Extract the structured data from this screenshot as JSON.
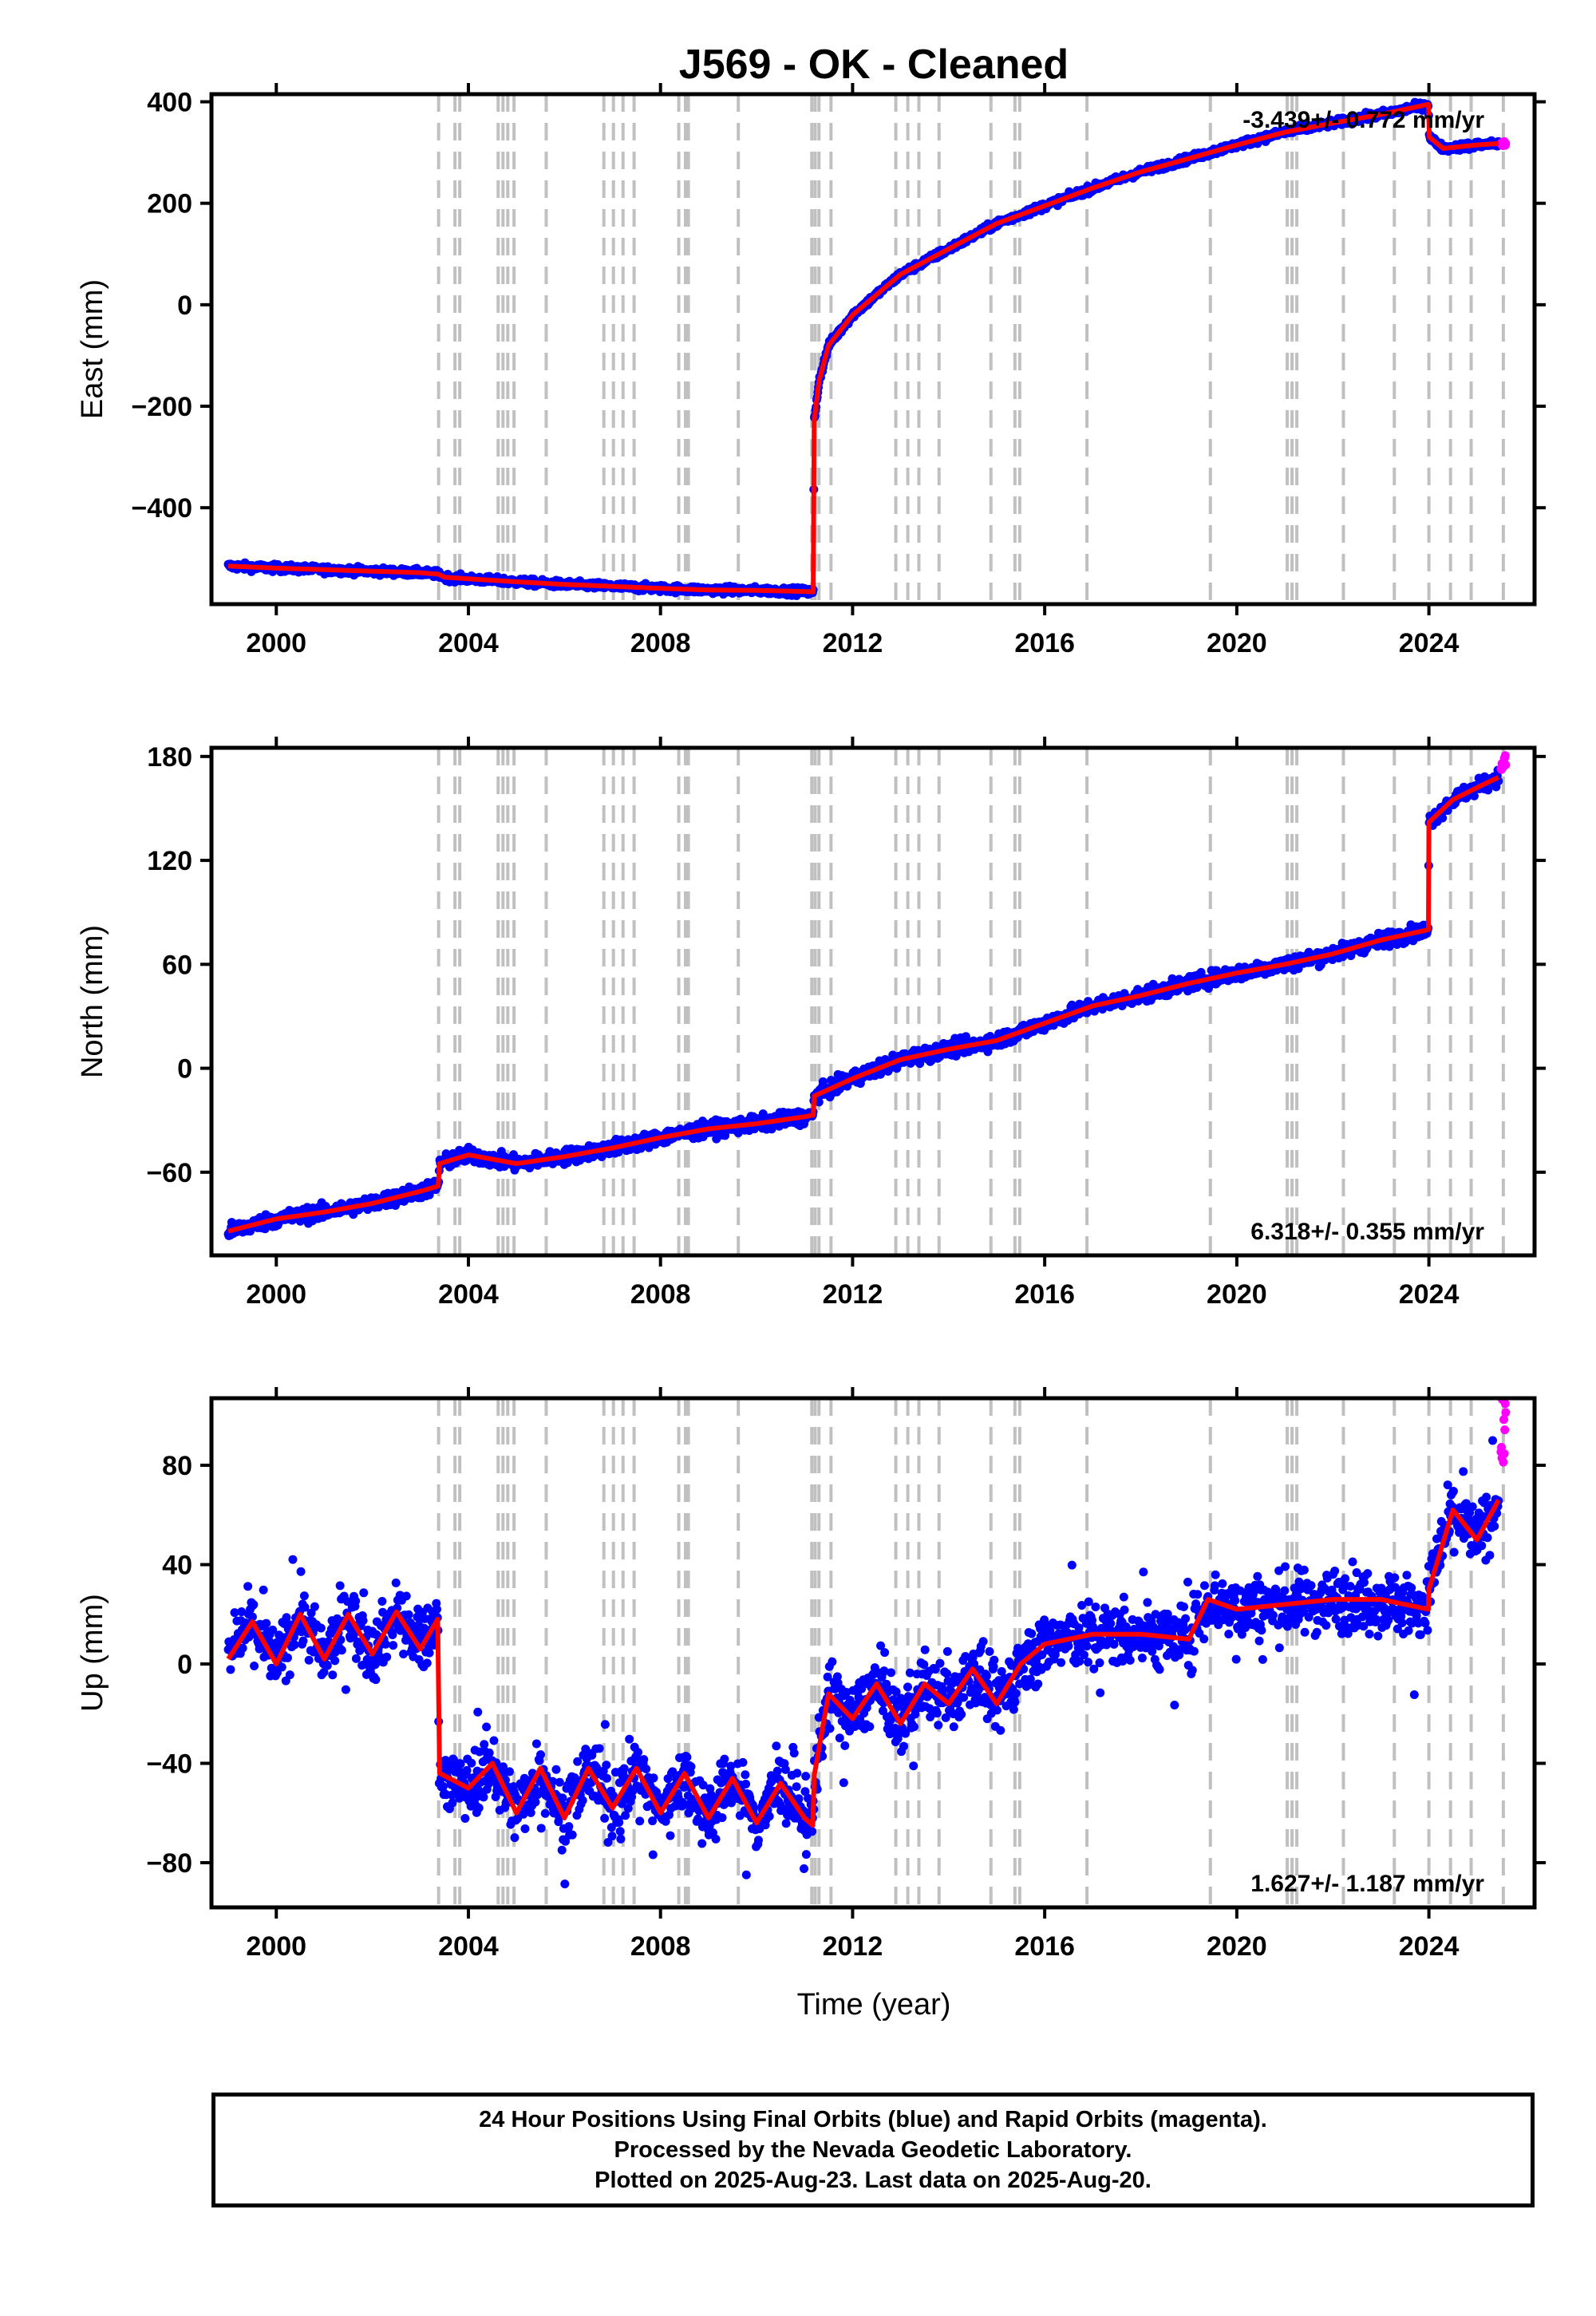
{
  "title": "J569  - OK - Cleaned",
  "colors": {
    "final_orbits": "#0000ff",
    "rapid_orbits": "#ff00ff",
    "model": "#ff0000",
    "event_lines": "#c0c0c0"
  },
  "caption": {
    "line1": "24 Hour Positions Using Final Orbits (blue) and Rapid Orbits (magenta).",
    "line2": "Processed by the Nevada Geodetic Laboratory.",
    "line3": "Plotted on 2025-Aug-23. Last data on 2025-Aug-20."
  },
  "chart_data": {
    "type": "scatter",
    "event_lines_years": [
      2003.38,
      2003.72,
      2003.82,
      2004.62,
      2004.72,
      2004.82,
      2004.95,
      2005.62,
      2006.82,
      2007.02,
      2007.22,
      2007.45,
      2008.38,
      2008.52,
      2008.58,
      2009.62,
      2011.15,
      2011.22,
      2011.3,
      2011.55,
      2012.9,
      2013.15,
      2013.38,
      2013.8,
      2014.88,
      2015.38,
      2015.48,
      2016.88,
      2019.45,
      2021.05,
      2021.15,
      2021.25,
      2022.22,
      2023.28,
      2024.0,
      2024.45,
      2024.88,
      2025.55
    ],
    "x_ticks": [
      "2000",
      "2004",
      "2008",
      "2012",
      "2016",
      "2020",
      "2024"
    ],
    "x_tick_values": [
      2000,
      2004,
      2008,
      2012,
      2016,
      2020,
      2024
    ],
    "xlim": [
      1998.65,
      2026.2
    ],
    "xlabel": "Time (year)",
    "panels": [
      {
        "name": "East",
        "ylabel": "East (mm)",
        "ylim": [
          -590,
          415
        ],
        "y_ticks": [
          400,
          200,
          0,
          -200,
          -400
        ],
        "y_tick_labels": [
          "400",
          "200",
          "0",
          "−200",
          "−400"
        ],
        "rate_text": "-3.439+/- 0.772 mm/yr",
        "rate_position": "top-right",
        "series": [
          {
            "name": "Final Orbits",
            "x": [
              1999.0,
              2000.0,
              2001.0,
              2002.0,
              2003.0,
              2003.38,
              2003.5,
              2004.0,
              2005.0,
              2006.0,
              2007.0,
              2008.0,
              2009.0,
              2010.0,
              2011.0,
              2011.18,
              2011.2,
              2011.3,
              2011.5,
              2012.0,
              2013.0,
              2014.0,
              2015.0,
              2016.0,
              2017.0,
              2018.0,
              2019.0,
              2020.0,
              2021.0,
              2022.0,
              2023.0,
              2023.99,
              2024.01,
              2024.3,
              2025.0,
              2025.45
            ],
            "y": [
              -515,
              -519,
              -522,
              -525,
              -528,
              -531,
              -537,
              -540,
              -546,
              -551,
              -555,
              -559,
              -562,
              -563,
              -565,
              -566,
              -230,
              -150,
              -80,
              -20,
              60,
              110,
              160,
              195,
              230,
              262,
              288,
              315,
              340,
              358,
              375,
              395,
              330,
              308,
              315,
              318
            ]
          },
          {
            "name": "Rapid Orbits",
            "x": [
              2025.5,
              2025.55,
              2025.6
            ],
            "y": [
              318,
              317,
              316
            ]
          }
        ]
      },
      {
        "name": "North",
        "ylabel": "North (mm)",
        "ylim": [
          -108,
          185
        ],
        "y_ticks": [
          180,
          120,
          60,
          0,
          -60
        ],
        "y_tick_labels": [
          "180",
          "120",
          "60",
          "0",
          "−60"
        ],
        "rate_text": "6.318+/- 0.355 mm/yr",
        "rate_position": "bottom-right",
        "series": [
          {
            "name": "Final Orbits",
            "x": [
              1999.0,
              2000.0,
              2001.0,
              2002.0,
              2003.0,
              2003.37,
              2003.4,
              2004.0,
              2005.0,
              2006.0,
              2007.0,
              2008.0,
              2009.0,
              2010.0,
              2011.0,
              2011.18,
              2011.2,
              2012.0,
              2013.0,
              2014.0,
              2015.0,
              2016.0,
              2017.0,
              2018.0,
              2019.0,
              2020.0,
              2021.0,
              2022.0,
              2023.0,
              2023.99,
              2024.0,
              2024.5,
              2025.0,
              2025.45
            ],
            "y": [
              -94,
              -87,
              -83,
              -78,
              -71,
              -68,
              -55,
              -50,
              -55,
              -51,
              -46,
              -40,
              -35,
              -32,
              -28,
              -27,
              -16,
              -6,
              5,
              11,
              16,
              26,
              36,
              42,
              49,
              55,
              60,
              66,
              74,
              80,
              142,
              155,
              162,
              168
            ]
          },
          {
            "name": "Rapid Orbits",
            "x": [
              2025.5,
              2025.55,
              2025.6
            ],
            "y": [
              172,
              176,
              178
            ]
          }
        ]
      },
      {
        "name": "Up",
        "ylabel": "Up (mm)",
        "ylim": [
          -98,
          107
        ],
        "y_ticks": [
          80,
          40,
          0,
          -40,
          -80
        ],
        "y_tick_labels": [
          "80",
          "40",
          "0",
          "−40",
          "−80"
        ],
        "rate_text": "1.627+/- 1.187 mm/yr",
        "rate_position": "bottom-right",
        "series": [
          {
            "name": "Final Orbits",
            "x": [
              1999.0,
              1999.5,
              2000.0,
              2000.5,
              2001.0,
              2001.5,
              2002.0,
              2002.5,
              2003.0,
              2003.36,
              2003.4,
              2004.0,
              2004.5,
              2005.0,
              2005.5,
              2006.0,
              2006.5,
              2007.0,
              2007.5,
              2008.0,
              2008.5,
              2009.0,
              2009.5,
              2010.0,
              2010.5,
              2011.0,
              2011.17,
              2011.2,
              2011.5,
              2012.0,
              2012.5,
              2013.0,
              2013.5,
              2014.0,
              2014.5,
              2015.0,
              2015.5,
              2016.0,
              2017.0,
              2018.0,
              2019.0,
              2019.4,
              2020.0,
              2021.0,
              2022.0,
              2023.0,
              2023.99,
              2024.0,
              2024.5,
              2025.0,
              2025.45
            ],
            "y": [
              2,
              17,
              0,
              20,
              2,
              20,
              4,
              21,
              6,
              18,
              -44,
              -50,
              -40,
              -60,
              -42,
              -62,
              -42,
              -58,
              -42,
              -60,
              -44,
              -62,
              -46,
              -64,
              -48,
              -62,
              -65,
              -45,
              -12,
              -22,
              -8,
              -24,
              -8,
              -16,
              -2,
              -16,
              0,
              8,
              12,
              12,
              10,
              26,
              22,
              24,
              26,
              26,
              22,
              30,
              62,
              50,
              66
            ]
          },
          {
            "name": "Rapid Orbits",
            "x": [
              2025.5,
              2025.55,
              2025.6
            ],
            "y": [
              84,
              92,
              95
            ]
          }
        ]
      }
    ]
  }
}
